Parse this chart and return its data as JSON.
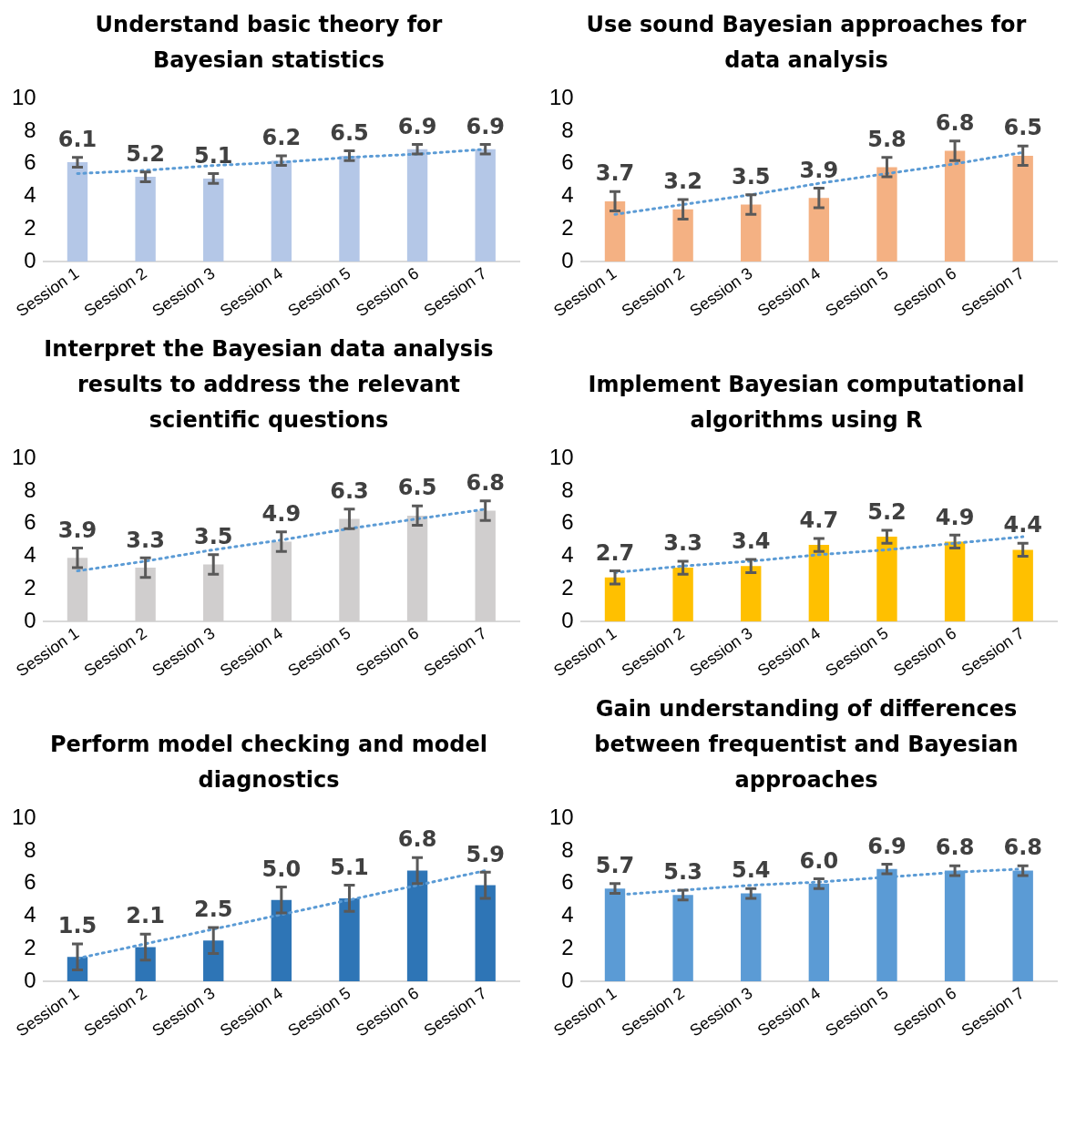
{
  "chart_data": [
    {
      "type": "bar",
      "title": "Understand basic theory for Bayesian statistics",
      "categories": [
        "Session 1",
        "Session 2",
        "Session 3",
        "Session 4",
        "Session 5",
        "Session 6",
        "Session 7"
      ],
      "ylim": [
        0,
        10
      ],
      "yticks": [
        0,
        2,
        4,
        6,
        8,
        10
      ],
      "grid": false,
      "legend": false,
      "series": [
        {
          "color": "#b4c7e7",
          "values": [
            6.1,
            5.2,
            5.1,
            6.2,
            6.5,
            6.9,
            6.9
          ],
          "errors": [
            0.3,
            0.3,
            0.3,
            0.3,
            0.3,
            0.3,
            0.3
          ],
          "value_labels": [
            "6.1",
            "5.2",
            "5.1",
            "6.2",
            "6.5",
            "6.9",
            "6.9"
          ]
        },
        {
          "type": "line",
          "color": "#5b9bd5",
          "line_style": "dotted",
          "values": [
            5.4,
            5.6,
            5.9,
            6.1,
            6.4,
            6.6,
            6.9
          ]
        }
      ]
    },
    {
      "type": "bar",
      "title": "Use sound Bayesian approaches for data analysis",
      "categories": [
        "Session 1",
        "Session 2",
        "Session 3",
        "Session 4",
        "Session 5",
        "Session 6",
        "Session 7"
      ],
      "ylim": [
        0,
        10
      ],
      "yticks": [
        0,
        2,
        4,
        6,
        8,
        10
      ],
      "grid": false,
      "legend": false,
      "series": [
        {
          "color": "#f4b183",
          "values": [
            3.7,
            3.2,
            3.5,
            3.9,
            5.8,
            6.8,
            6.5
          ],
          "errors": [
            0.6,
            0.6,
            0.6,
            0.6,
            0.6,
            0.6,
            0.6
          ],
          "value_labels": [
            "3.7",
            "3.2",
            "3.5",
            "3.9",
            "5.8",
            "6.8",
            "6.5"
          ]
        },
        {
          "type": "line",
          "color": "#5b9bd5",
          "line_style": "dotted",
          "values": [
            2.9,
            3.5,
            4.1,
            4.8,
            5.4,
            6.0,
            6.7
          ]
        }
      ]
    },
    {
      "type": "bar",
      "title": "Interpret the Bayesian data analysis results to address the relevant scientific questions",
      "categories": [
        "Session 1",
        "Session 2",
        "Session 3",
        "Session 4",
        "Session 5",
        "Session 6",
        "Session 7"
      ],
      "ylim": [
        0,
        10
      ],
      "yticks": [
        0,
        2,
        4,
        6,
        8,
        10
      ],
      "grid": false,
      "legend": false,
      "series": [
        {
          "color": "#d0cece",
          "values": [
            3.9,
            3.3,
            3.5,
            4.9,
            6.3,
            6.5,
            6.8
          ],
          "errors": [
            0.6,
            0.6,
            0.6,
            0.6,
            0.6,
            0.6,
            0.6
          ],
          "value_labels": [
            "3.9",
            "3.3",
            "3.5",
            "4.9",
            "6.3",
            "6.5",
            "6.8"
          ]
        },
        {
          "type": "line",
          "color": "#5b9bd5",
          "line_style": "dotted",
          "values": [
            3.1,
            3.7,
            4.4,
            5.0,
            5.7,
            6.3,
            6.9
          ]
        }
      ]
    },
    {
      "type": "bar",
      "title": "Implement Bayesian computational algorithms using R",
      "categories": [
        "Session 1",
        "Session 2",
        "Session 3",
        "Session 4",
        "Session 5",
        "Session 6",
        "Session 7"
      ],
      "ylim": [
        0,
        10
      ],
      "yticks": [
        0,
        2,
        4,
        6,
        8,
        10
      ],
      "grid": false,
      "legend": false,
      "series": [
        {
          "color": "#ffc000",
          "values": [
            2.7,
            3.3,
            3.4,
            4.7,
            5.2,
            4.9,
            4.4
          ],
          "errors": [
            0.4,
            0.4,
            0.4,
            0.4,
            0.4,
            0.4,
            0.4
          ],
          "value_labels": [
            "2.7",
            "3.3",
            "3.4",
            "4.7",
            "5.2",
            "4.9",
            "4.4"
          ]
        },
        {
          "type": "line",
          "color": "#5b9bd5",
          "line_style": "dotted",
          "values": [
            3.0,
            3.4,
            3.7,
            4.1,
            4.4,
            4.8,
            5.2
          ]
        }
      ]
    },
    {
      "type": "bar",
      "title": "Perform model checking and model diagnostics",
      "categories": [
        "Session 1",
        "Session 2",
        "Session 3",
        "Session 4",
        "Session 5",
        "Session 6",
        "Session 7"
      ],
      "ylim": [
        0,
        10
      ],
      "yticks": [
        0,
        2,
        4,
        6,
        8,
        10
      ],
      "grid": false,
      "legend": false,
      "series": [
        {
          "color": "#2e75b6",
          "values": [
            1.5,
            2.1,
            2.5,
            5.0,
            5.1,
            6.8,
            5.9
          ],
          "errors": [
            0.8,
            0.8,
            0.8,
            0.8,
            0.8,
            0.8,
            0.8
          ],
          "value_labels": [
            "1.5",
            "2.1",
            "2.5",
            "5.0",
            "5.1",
            "6.8",
            "5.9"
          ]
        },
        {
          "type": "line",
          "color": "#5b9bd5",
          "line_style": "dotted",
          "values": [
            1.4,
            2.3,
            3.2,
            4.1,
            5.0,
            5.9,
            6.8
          ]
        }
      ]
    },
    {
      "type": "bar",
      "title": "Gain understanding of differences between frequentist and Bayesian approaches",
      "categories": [
        "Session 1",
        "Session 2",
        "Session 3",
        "Session 4",
        "Session 5",
        "Session 6",
        "Session 7"
      ],
      "ylim": [
        0,
        10
      ],
      "yticks": [
        0,
        2,
        4,
        6,
        8,
        10
      ],
      "grid": false,
      "legend": false,
      "series": [
        {
          "color": "#5b9bd5",
          "values": [
            5.7,
            5.3,
            5.4,
            6.0,
            6.9,
            6.8,
            6.8
          ],
          "errors": [
            0.3,
            0.3,
            0.3,
            0.3,
            0.3,
            0.3,
            0.3
          ],
          "value_labels": [
            "5.7",
            "5.3",
            "5.4",
            "6.0",
            "6.9",
            "6.8",
            "6.8"
          ]
        },
        {
          "type": "line",
          "color": "#5b9bd5",
          "line_style": "dotted",
          "values": [
            5.3,
            5.6,
            5.9,
            6.1,
            6.4,
            6.7,
            6.9
          ]
        }
      ]
    }
  ]
}
